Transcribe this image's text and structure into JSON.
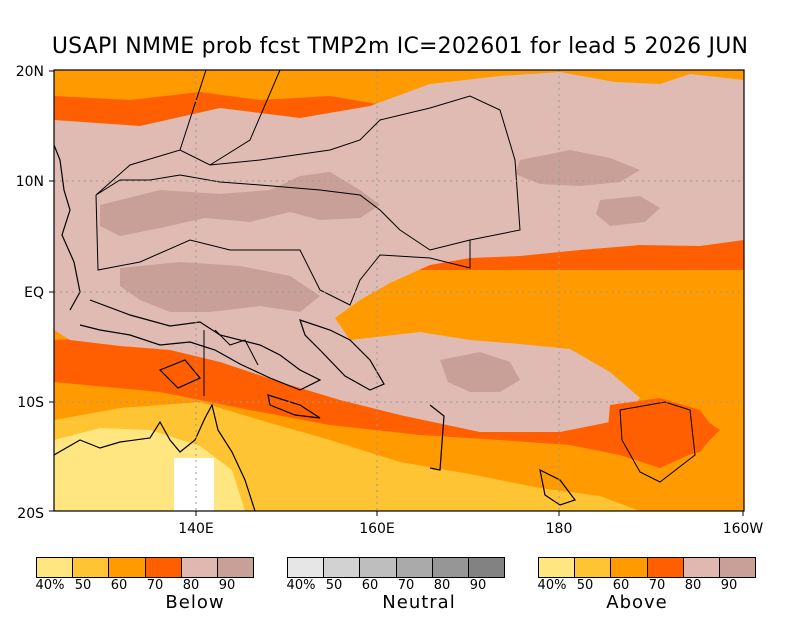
{
  "title": "USAPI NMME prob fcst TMP2m IC=202601 for lead 5 2026 JUN",
  "map": {
    "lat_labels": [
      "20N",
      "10N",
      "EQ",
      "10S",
      "20S"
    ],
    "lon_labels": [
      "140E",
      "160E",
      "180",
      "160W"
    ],
    "region": "Western/Central Tropical Pacific",
    "lon_range_deg": [
      125,
      200
    ],
    "lat_range_deg": [
      -20,
      20
    ]
  },
  "legends": [
    {
      "name": "Below",
      "ticks": [
        "40%",
        "50",
        "60",
        "70",
        "80",
        "90"
      ],
      "colors": [
        "#ffe680",
        "#ffc433",
        "#ff9a00",
        "#ff5f00",
        "#e0b8b0",
        "#c8a098"
      ]
    },
    {
      "name": "Neutral",
      "ticks": [
        "40%",
        "50",
        "60",
        "70",
        "80",
        "90"
      ],
      "colors": [
        "#e6e6e6",
        "#d2d2d2",
        "#bebebe",
        "#aaaaaa",
        "#969696",
        "#828282"
      ]
    },
    {
      "name": "Above",
      "ticks": [
        "40%",
        "50",
        "60",
        "70",
        "80",
        "90"
      ],
      "colors": [
        "#ffe680",
        "#ffc433",
        "#ff9a00",
        "#ff5f00",
        "#e0b8b0",
        "#c8a098"
      ]
    }
  ],
  "colors": {
    "c50": "#ffc433",
    "c60": "#ff9a00",
    "c70": "#ff5f00",
    "c80": "#e0bbb3",
    "c90": "#c8a098"
  }
}
